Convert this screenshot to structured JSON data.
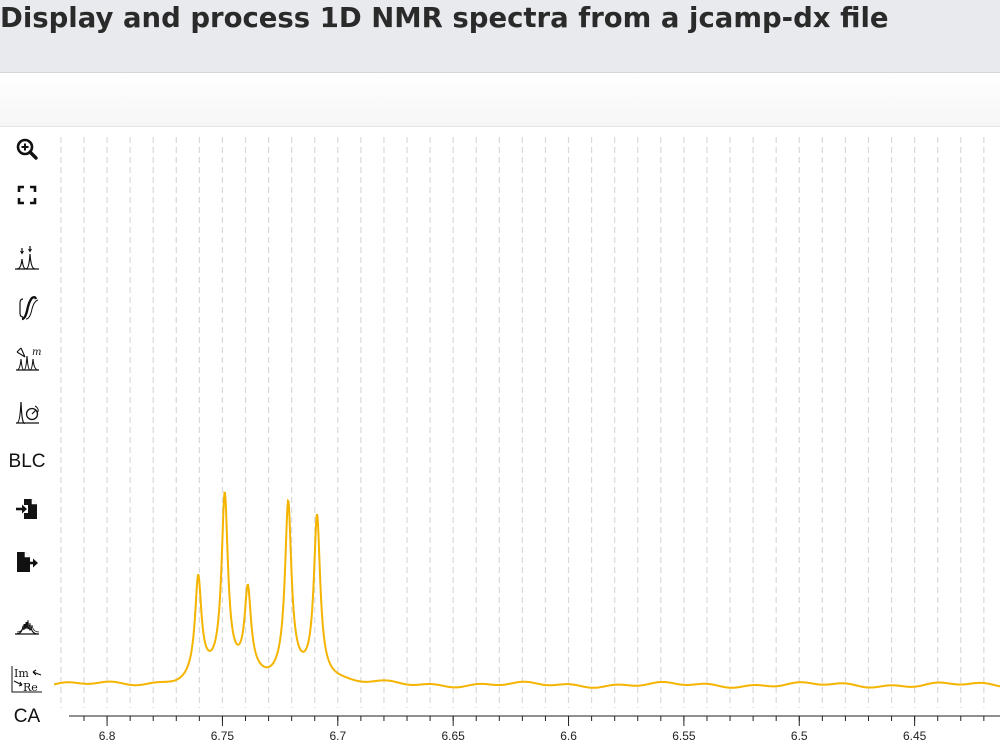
{
  "page": {
    "title": "Display and process 1D NMR spectra from a jcamp-dx file"
  },
  "tools": [
    {
      "id": "zoom",
      "icon": "zoom-in-icon"
    },
    {
      "id": "full",
      "icon": "fullscreen-icon"
    },
    {
      "id": "peak-picking",
      "icon": "peak-picking-icon"
    },
    {
      "id": "integral",
      "icon": "integral-icon"
    },
    {
      "id": "multiplet",
      "icon": "multiplet-icon"
    },
    {
      "id": "phase",
      "icon": "phase-correction-icon"
    },
    {
      "id": "blc",
      "label": "BLC"
    },
    {
      "id": "import",
      "icon": "import-icon"
    },
    {
      "id": "export",
      "icon": "export-icon"
    },
    {
      "id": "spectra-stack",
      "icon": "spectra-stack-icon"
    },
    {
      "id": "real-imag",
      "icon": "real-imaginary-icon"
    },
    {
      "id": "ca",
      "label": "CA"
    }
  ],
  "chart_data": {
    "type": "line",
    "title": "",
    "xlabel": "",
    "ylabel": "",
    "x_reversed": true,
    "xlim": [
      6.823,
      6.413
    ],
    "ylim": [
      0,
      1
    ],
    "x_ticks": [
      6.8,
      6.75,
      6.7,
      6.65,
      6.6,
      6.55,
      6.5,
      6.45
    ],
    "x_tick_labels": [
      "6.8",
      "6.75",
      "6.7",
      "6.65",
      "6.6",
      "6.55",
      "6.5",
      "6.45"
    ],
    "minor_step": 0.01,
    "gridlines": "vertical dashed",
    "series_color": "#f4b400",
    "baseline": 0,
    "peaks": [
      {
        "x": 6.7605,
        "height": 0.213
      },
      {
        "x": 6.749,
        "height": 0.386
      },
      {
        "x": 6.739,
        "height": 0.179
      },
      {
        "x": 6.7215,
        "height": 0.372
      },
      {
        "x": 6.709,
        "height": 0.351
      }
    ],
    "peak_width": 0.0016
  }
}
